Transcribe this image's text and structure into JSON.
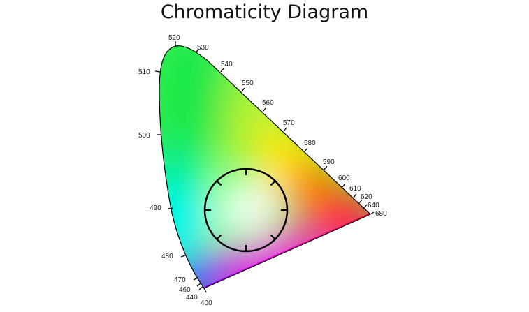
{
  "title": "Chromaticity Diagram",
  "wavelength_labels": [
    {
      "nm": "400"
    },
    {
      "nm": "440"
    },
    {
      "nm": "460"
    },
    {
      "nm": "470"
    },
    {
      "nm": "480"
    },
    {
      "nm": "490"
    },
    {
      "nm": "500"
    },
    {
      "nm": "510"
    },
    {
      "nm": "520"
    },
    {
      "nm": "530"
    },
    {
      "nm": "540"
    },
    {
      "nm": "550"
    },
    {
      "nm": "560"
    },
    {
      "nm": "570"
    },
    {
      "nm": "580"
    },
    {
      "nm": "590"
    },
    {
      "nm": "600"
    },
    {
      "nm": "610"
    },
    {
      "nm": "620"
    },
    {
      "nm": "640"
    },
    {
      "nm": "680"
    }
  ],
  "colors": {
    "green": "#22ee44",
    "yellow": "#ffee00",
    "orange": "#ff8800",
    "red": "#ff0000",
    "magenta": "#ee00ee",
    "blue": "#0033ff",
    "cyan": "#00ffee",
    "white_point": "#ffffff",
    "outline": "#000000"
  },
  "hue_circle": {
    "tick_count": 8
  }
}
